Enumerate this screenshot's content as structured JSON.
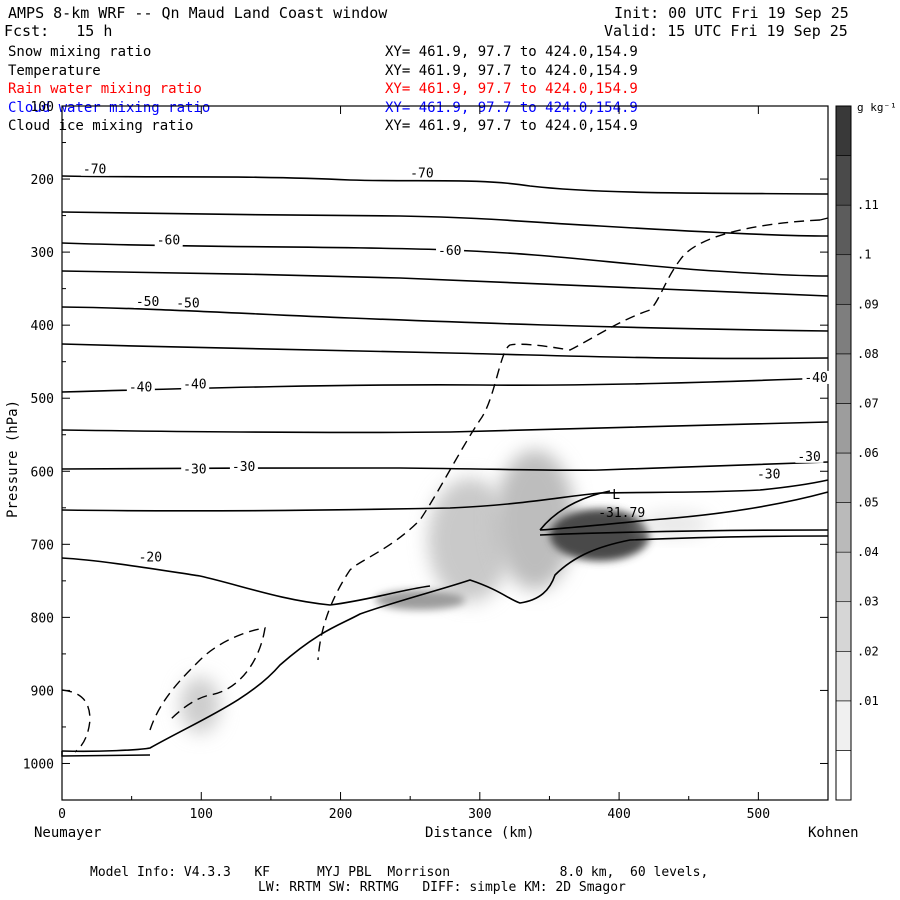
{
  "header": {
    "title": "AMPS 8-km WRF -- Qn Maud Land Coast window",
    "forecast": "Fcst:   15 h",
    "init": "Init: 00 UTC Fri 19 Sep 25",
    "valid": "Valid: 15 UTC Fri 19 Sep 25"
  },
  "fields": [
    {
      "name": "Snow mixing ratio",
      "xy": "XY= 461.9, 97.7 to 424.0,154.9",
      "color": "#000000"
    },
    {
      "name": "Temperature",
      "xy": "XY= 461.9, 97.7 to 424.0,154.9",
      "color": "#000000"
    },
    {
      "name": "Rain water mixing ratio",
      "xy": "XY= 461.9, 97.7 to 424.0,154.9",
      "color": "#ff0000"
    },
    {
      "name": "Cloud water mixing ratio",
      "xy": "XY= 461.9, 97.7 to 424.0,154.9",
      "color": "#0000ff"
    },
    {
      "name": "Cloud ice mixing ratio",
      "xy": "XY= 461.9, 97.7 to 424.0,154.9",
      "color": "#000000"
    }
  ],
  "chart_data": {
    "type": "cross-section",
    "xlabel": "Distance (km)",
    "ylabel": "Pressure (hPa)",
    "x_end_labels": {
      "left": "Neumayer",
      "right": "Kohnen"
    },
    "xlim": [
      0,
      550
    ],
    "ylim": [
      1050,
      100
    ],
    "x_ticks": [
      0,
      100,
      200,
      300,
      400,
      500
    ],
    "y_ticks": [
      100,
      200,
      300,
      400,
      500,
      600,
      700,
      800,
      900,
      1000
    ],
    "isotherm_labels": [
      {
        "text": "-70",
        "x": 15,
        "p": 190
      },
      {
        "text": "-70",
        "x": 250,
        "p": 195
      },
      {
        "text": "-60",
        "x": 68,
        "p": 287
      },
      {
        "text": "-60",
        "x": 270,
        "p": 301
      },
      {
        "text": "-50",
        "x": 53,
        "p": 371
      },
      {
        "text": "-50",
        "x": 82,
        "p": 373
      },
      {
        "text": "-40",
        "x": 48,
        "p": 488
      },
      {
        "text": "-40",
        "x": 87,
        "p": 484
      },
      {
        "text": "-40",
        "x": 533,
        "p": 475
      },
      {
        "text": "-30",
        "x": 87,
        "p": 600
      },
      {
        "text": "-30",
        "x": 122,
        "p": 597
      },
      {
        "text": "-30",
        "x": 528,
        "p": 583
      },
      {
        "text": "-30",
        "x": 499,
        "p": 607
      },
      {
        "text": "-20",
        "x": 55,
        "p": 721
      }
    ],
    "min_marker": {
      "symbol": "L",
      "value": "-31.79",
      "x": 385,
      "p": 656
    },
    "colorbar": {
      "unit": "g kg⁻¹",
      "levels": [
        "",
        ".01",
        ".02",
        ".03",
        ".04",
        ".05",
        ".06",
        ".07",
        ".08",
        ".09",
        ".1",
        ".11",
        ""
      ],
      "colors": [
        "#ffffff",
        "#f0f0f0",
        "#e3e3e3",
        "#d6d6d6",
        "#c8c8c8",
        "#bababa",
        "#acacac",
        "#9d9d9d",
        "#8e8e8e",
        "#7e7e7e",
        "#6e6e6e",
        "#5c5c5c",
        "#4a4a4a",
        "#393939"
      ]
    }
  },
  "footer": {
    "line1": "Model Info: V4.3.3   KF      MYJ PBL  Morrison              8.0 km,  60 levels,",
    "line2": "LW: RRTM SW: RRTMG   DIFF: simple KM: 2D Smagor"
  }
}
